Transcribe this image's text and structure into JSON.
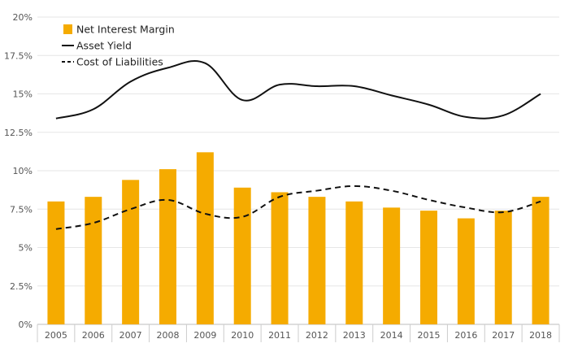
{
  "chart_data": {
    "type": "bar",
    "categories": [
      "2005",
      "2006",
      "2007",
      "2008",
      "2009",
      "2010",
      "2011",
      "2012",
      "2013",
      "2014",
      "2015",
      "2016",
      "2017",
      "2018"
    ],
    "ylim": [
      0,
      20
    ],
    "yticks": [
      0,
      2.5,
      5,
      7.5,
      10,
      12.5,
      15,
      17.5,
      20
    ],
    "ytick_labels": [
      "0%",
      "2.5%",
      "5%",
      "7.5%",
      "10%",
      "12.5%",
      "15%",
      "17.5%",
      "20%"
    ],
    "grid": true,
    "legend_position": "top-left",
    "series": [
      {
        "name": "Net Interest Margin",
        "type": "bar",
        "color": "#f5ab00",
        "values": [
          8.0,
          8.3,
          9.4,
          10.1,
          11.2,
          8.9,
          8.6,
          8.3,
          8.0,
          7.6,
          7.4,
          6.9,
          7.4,
          8.3
        ]
      },
      {
        "name": "Asset Yield",
        "type": "line",
        "style": "solid",
        "color": "#111111",
        "values": [
          13.4,
          14.0,
          15.8,
          16.7,
          17.0,
          14.6,
          15.6,
          15.5,
          15.5,
          14.9,
          14.3,
          13.5,
          13.6,
          15.0
        ]
      },
      {
        "name": "Cost of Liabilities",
        "type": "line",
        "style": "dashed",
        "color": "#111111",
        "values": [
          6.2,
          6.6,
          7.5,
          8.1,
          7.2,
          7.0,
          8.3,
          8.7,
          9.0,
          8.7,
          8.1,
          7.6,
          7.3,
          8.0
        ]
      }
    ]
  }
}
